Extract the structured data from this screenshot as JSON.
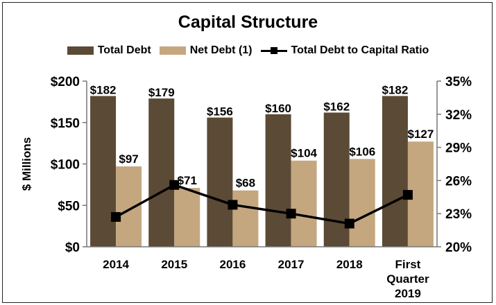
{
  "chart_data": {
    "type": "bar",
    "title": "Capital Structure",
    "ylabel": "$ Millions",
    "y2label": "",
    "categories": [
      [
        "2014"
      ],
      [
        "2015"
      ],
      [
        "2016"
      ],
      [
        "2017"
      ],
      [
        "2018"
      ],
      [
        "First",
        "Quarter",
        "2019"
      ]
    ],
    "ylim": [
      0,
      200
    ],
    "y2lim": [
      20,
      35
    ],
    "yticks": [
      0,
      50,
      100,
      150,
      200
    ],
    "ytick_labels": [
      "$0",
      "$50",
      "$100",
      "$150",
      "$200"
    ],
    "y2ticks": [
      20,
      23,
      26,
      29,
      32,
      35
    ],
    "y2tick_labels": [
      "20%",
      "23%",
      "26%",
      "29%",
      "32%",
      "35%"
    ],
    "grid": false,
    "legend_position": "top",
    "series": [
      {
        "name": "Total Debt",
        "type": "bar",
        "axis": "left",
        "color": "#5b4a35",
        "values": [
          182,
          179,
          156,
          160,
          162,
          182
        ],
        "labels": [
          "$182",
          "$179",
          "$156",
          "$160",
          "$162",
          "$182"
        ]
      },
      {
        "name": "Net Debt (1)",
        "type": "bar",
        "axis": "left",
        "color": "#c4a77f",
        "values": [
          97,
          71,
          68,
          104,
          106,
          127
        ],
        "labels": [
          "$97",
          "$71",
          "$68",
          "$104",
          "$106",
          "$127"
        ]
      },
      {
        "name": "Total Debt to Capital Ratio",
        "type": "line",
        "axis": "right",
        "color": "#000000",
        "values": [
          22.7,
          25.6,
          23.8,
          23.0,
          22.1,
          24.7
        ]
      }
    ]
  }
}
